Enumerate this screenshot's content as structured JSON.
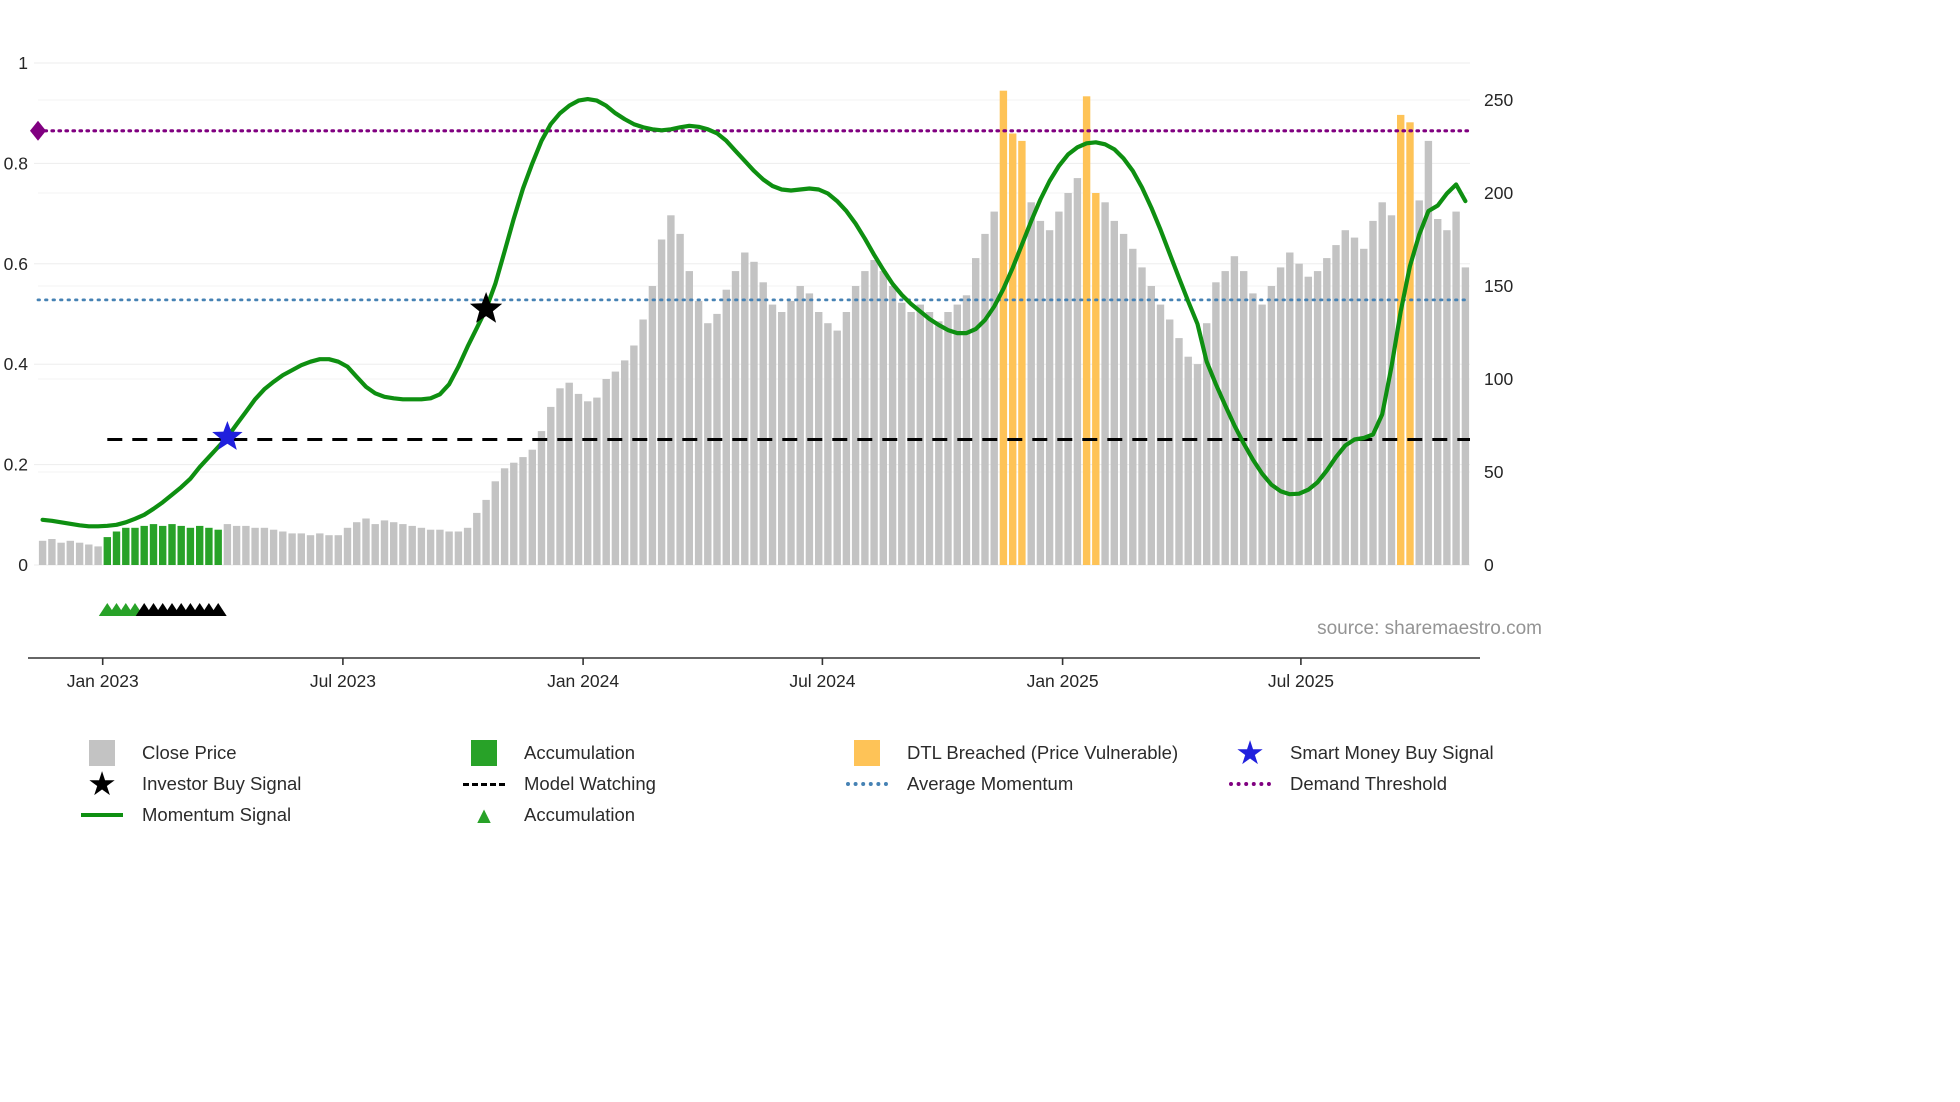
{
  "source_caption": "source: sharemaestro.com",
  "legend": {
    "close_price": "Close Price",
    "investor_buy_signal": "Investor Buy Signal",
    "momentum_signal": "Momentum Signal",
    "accumulation_bar": "Accumulation",
    "model_watching": "Model Watching",
    "accumulation_triangle": "Accumulation",
    "dtl_breached": "DTL Breached (Price Vulnerable)",
    "average_momentum": "Average Momentum",
    "smart_money_buy_signal": "Smart Money Buy Signal",
    "demand_threshold": "Demand Threshold"
  },
  "chart_data": {
    "type": "bar+line",
    "title": "",
    "x_axis": {
      "tick_labels": [
        "Jan 2023",
        "Jul 2023",
        "Jan 2024",
        "Jul 2024",
        "Jan 2025",
        "Jul 2025"
      ],
      "tick_indices": [
        6.5,
        32.5,
        58.5,
        84.4,
        110.4,
        136.2
      ]
    },
    "left_axis": {
      "ticks": [
        0,
        0.2,
        0.4,
        0.6,
        0.8,
        1
      ],
      "range": [
        0,
        1
      ]
    },
    "right_axis": {
      "ticks": [
        0,
        50,
        100,
        150,
        200,
        250
      ],
      "range": [
        0,
        262
      ]
    },
    "bars": {
      "series_name": "Close Price",
      "values": [
        13,
        14,
        12,
        13,
        12,
        11,
        10,
        15,
        18,
        20,
        20,
        21,
        22,
        21,
        22,
        21,
        20,
        21,
        20,
        19,
        22,
        21,
        21,
        20,
        20,
        19,
        18,
        17,
        17,
        16,
        17,
        16,
        16,
        20,
        23,
        25,
        22,
        24,
        23,
        22,
        21,
        20,
        19,
        19,
        18,
        18,
        20,
        28,
        35,
        45,
        52,
        55,
        58,
        62,
        72,
        85,
        95,
        98,
        92,
        88,
        90,
        100,
        104,
        110,
        118,
        132,
        150,
        175,
        188,
        178,
        158,
        142,
        130,
        135,
        148,
        158,
        168,
        163,
        152,
        140,
        136,
        142,
        150,
        146,
        136,
        130,
        126,
        136,
        150,
        158,
        164,
        158,
        150,
        141,
        136,
        140,
        136,
        131,
        136,
        140,
        145,
        165,
        178,
        190,
        255,
        232,
        228,
        195,
        185,
        180,
        190,
        200,
        208,
        252,
        200,
        195,
        185,
        178,
        170,
        160,
        150,
        140,
        132,
        122,
        112,
        108,
        130,
        152,
        158,
        166,
        158,
        146,
        140,
        150,
        160,
        168,
        162,
        155,
        158,
        165,
        172,
        180,
        176,
        170,
        185,
        195,
        188,
        242,
        238,
        196,
        228,
        186,
        180,
        190,
        160
      ],
      "accumulation_indices": [
        7,
        8,
        9,
        10,
        11,
        12,
        13,
        14,
        15,
        16,
        17,
        18,
        19
      ],
      "dtl_breached_indices": [
        104,
        105,
        106,
        113,
        114,
        147,
        148
      ]
    },
    "momentum": [
      0.09,
      0.088,
      0.085,
      0.082,
      0.079,
      0.077,
      0.077,
      0.078,
      0.08,
      0.085,
      0.092,
      0.1,
      0.112,
      0.125,
      0.14,
      0.155,
      0.172,
      0.195,
      0.215,
      0.235,
      0.255,
      0.28,
      0.305,
      0.33,
      0.35,
      0.365,
      0.378,
      0.388,
      0.398,
      0.405,
      0.41,
      0.41,
      0.405,
      0.395,
      0.375,
      0.355,
      0.342,
      0.335,
      0.332,
      0.33,
      0.33,
      0.33,
      0.332,
      0.34,
      0.36,
      0.395,
      0.435,
      0.472,
      0.51,
      0.56,
      0.625,
      0.69,
      0.75,
      0.8,
      0.845,
      0.878,
      0.9,
      0.915,
      0.925,
      0.928,
      0.925,
      0.915,
      0.9,
      0.888,
      0.878,
      0.872,
      0.868,
      0.866,
      0.868,
      0.872,
      0.875,
      0.873,
      0.868,
      0.86,
      0.845,
      0.825,
      0.805,
      0.785,
      0.768,
      0.755,
      0.748,
      0.746,
      0.748,
      0.75,
      0.748,
      0.74,
      0.725,
      0.705,
      0.68,
      0.65,
      0.618,
      0.588,
      0.56,
      0.538,
      0.52,
      0.505,
      0.49,
      0.478,
      0.468,
      0.462,
      0.462,
      0.47,
      0.488,
      0.515,
      0.55,
      0.592,
      0.638,
      0.685,
      0.728,
      0.765,
      0.795,
      0.818,
      0.832,
      0.84,
      0.842,
      0.838,
      0.828,
      0.81,
      0.785,
      0.752,
      0.712,
      0.668,
      0.62,
      0.572,
      0.525,
      0.48,
      0.405,
      0.36,
      0.318,
      0.278,
      0.242,
      0.21,
      0.182,
      0.16,
      0.147,
      0.141,
      0.142,
      0.15,
      0.165,
      0.188,
      0.215,
      0.238,
      0.25,
      0.253,
      0.26,
      0.3,
      0.395,
      0.505,
      0.595,
      0.658,
      0.705,
      0.716,
      0.74,
      0.758,
      0.725
    ],
    "hlines": {
      "demand_threshold": 0.865,
      "average_momentum": 0.528,
      "model_watching": 0.25,
      "model_watching_start_index": 7
    },
    "markers": {
      "smart_money_buy_signal": {
        "index": 20,
        "value": 0.255
      },
      "investor_buy_signal": {
        "index": 48,
        "value": 0.51
      },
      "accumulation_triangles": {
        "green_indices": [
          7,
          8,
          9,
          10
        ],
        "dark_indices": [
          11,
          12,
          13,
          14,
          15,
          16,
          17,
          18,
          19
        ]
      }
    },
    "colors": {
      "close_price": "#c3c3c3",
      "accumulation": "#28a228",
      "momentum": "#0e8f11",
      "dtl_breached": "#fec357",
      "average_momentum": "#4682b4",
      "demand_threshold": "#800080",
      "model_watching": "#000000",
      "smart_money": "#2020dd",
      "investor_buy": "#000000"
    }
  }
}
